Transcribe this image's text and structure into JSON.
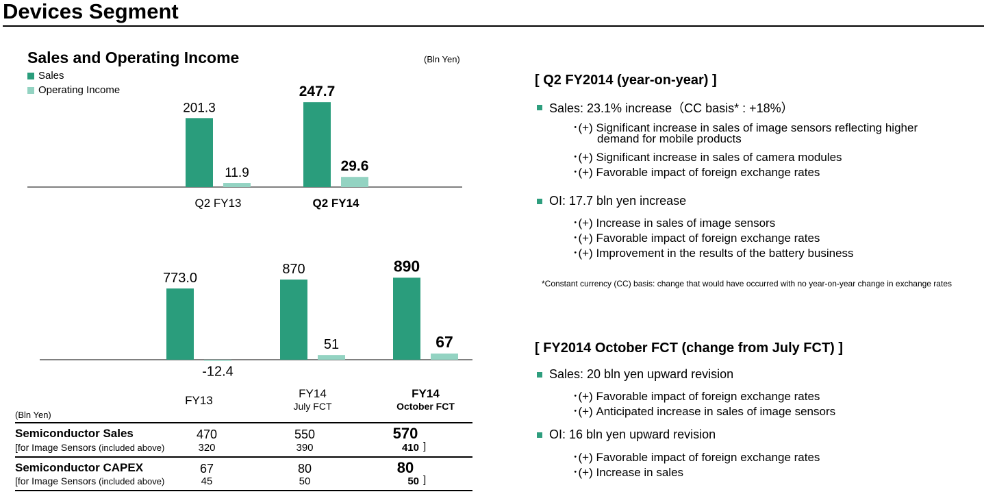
{
  "page": {
    "title": "Devices Segment"
  },
  "chart_top": {
    "title": "Sales and Operating Income",
    "unit": "(Bln Yen)",
    "legend": [
      {
        "label": "Sales",
        "color": "#2a9d7c"
      },
      {
        "label": "Operating Income",
        "color": "#93d3c2"
      }
    ]
  },
  "chart_data": [
    {
      "type": "bar",
      "title": "Sales and Operating Income",
      "unit": "(Bln Yen)",
      "categories": [
        "Q2 FY13",
        "Q2 FY14"
      ],
      "series": [
        {
          "name": "Sales",
          "values": [
            201.3,
            247.7
          ],
          "labels": [
            "201.3",
            "247.7"
          ],
          "color": "#2a9d7c"
        },
        {
          "name": "Operating Income",
          "values": [
            11.9,
            29.6
          ],
          "labels": [
            "11.9",
            "29.6"
          ],
          "color": "#93d3c2"
        }
      ],
      "emphasized_category": "Q2 FY14"
    },
    {
      "type": "bar",
      "categories": [
        [
          "FY13"
        ],
        [
          "FY14",
          "July FCT"
        ],
        [
          "FY14",
          "October FCT"
        ]
      ],
      "series": [
        {
          "name": "Sales",
          "values": [
            773.0,
            870,
            890
          ],
          "labels": [
            "773.0",
            "870",
            "890"
          ],
          "color": "#2a9d7c"
        },
        {
          "name": "Operating Income",
          "values": [
            -12.4,
            51,
            67
          ],
          "labels": [
            "-12.4",
            "51",
            "67"
          ],
          "color": "#93d3c2"
        }
      ],
      "emphasized_category": "FY14 October FCT"
    }
  ],
  "table": {
    "unit": "(Bln Yen)",
    "rows": [
      {
        "label": "Semiconductor Sales",
        "values": [
          "470",
          "550",
          "570"
        ],
        "sub_label": "[for Image Sensors",
        "sub_note": "(included above)",
        "sub_values": [
          "320",
          "390",
          "410"
        ],
        "close": "]"
      },
      {
        "label": "Semiconductor CAPEX",
        "values": [
          "67",
          "80",
          "80"
        ],
        "sub_label": "[for Image Sensors",
        "sub_note": "(included above)",
        "sub_values": [
          "45",
          "50",
          "50"
        ],
        "close": "]"
      }
    ]
  },
  "right": {
    "q2": {
      "heading": "[ Q2 FY2014 (year-on-year) ]",
      "sales": "Sales: 23.1% increase（CC basis* : +18%）",
      "sales_items": [
        "･(+)  Significant increase in sales of image sensors reflecting higher",
        "demand for mobile products",
        "･(+)  Significant increase in sales of camera modules",
        "･(+) Favorable impact of foreign exchange rates"
      ],
      "oi": "OI: 17.7 bln yen increase",
      "oi_items": [
        "･(+) Increase in sales of image sensors",
        "･(+) Favorable impact of foreign exchange rates",
        "･(+) Improvement in the results of the battery business"
      ],
      "footnote": "*Constant currency (CC) basis: change that would have occurred with no year-on-year change in exchange rates"
    },
    "fct": {
      "heading": "[ FY2014 October FCT (change from July FCT) ]",
      "sales": "Sales: 20 bln yen upward revision",
      "sales_items": [
        "･(+) Favorable impact of foreign exchange rates",
        "･(+)  Anticipated increase in sales of image sensors"
      ],
      "oi": "OI: 16 bln yen upward revision",
      "oi_items": [
        "･(+) Favorable impact of foreign exchange rates",
        "･(+)  Increase in sales"
      ]
    }
  }
}
